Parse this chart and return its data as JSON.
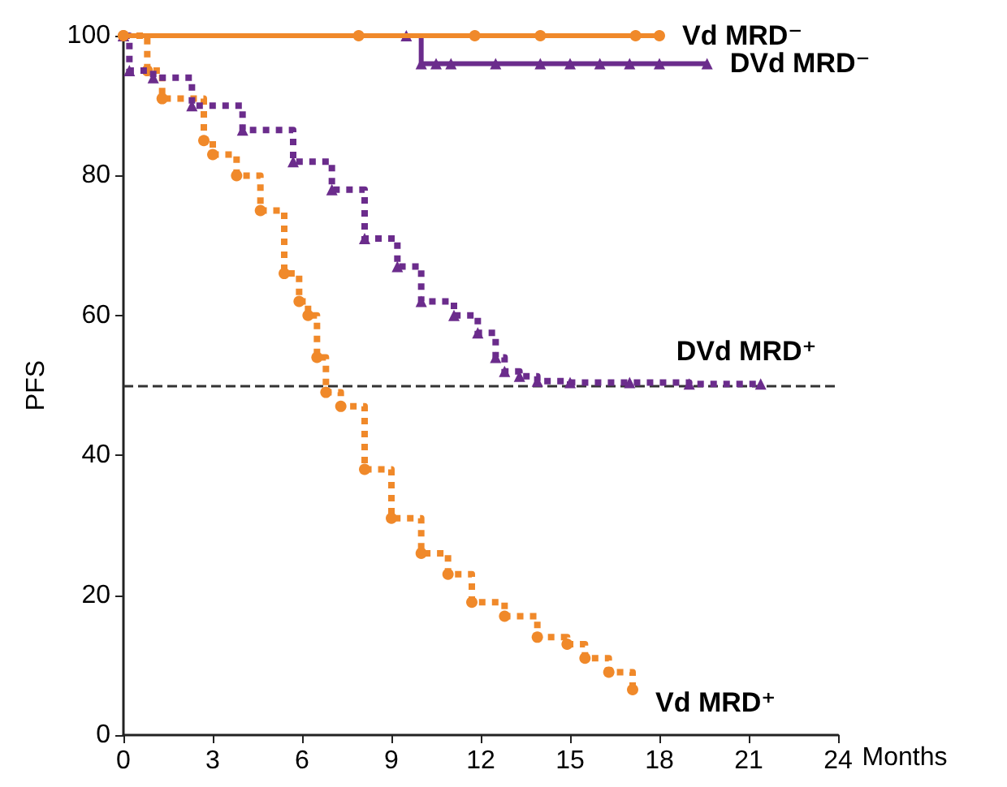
{
  "chart_data": {
    "type": "step",
    "xlabel": "Months",
    "ylabel": "PFS",
    "xlim": [
      0,
      24
    ],
    "xticks": [
      0,
      3,
      6,
      9,
      12,
      15,
      18,
      21,
      24
    ],
    "ylim": [
      0,
      100
    ],
    "yticks": [
      0,
      20,
      40,
      60,
      80,
      100
    ],
    "grid": false,
    "legend": false,
    "ref_lines": [
      {
        "axis": "y",
        "value": 50,
        "color": "#333333",
        "line_style": "dashed"
      }
    ],
    "series": [
      {
        "name": "Vd MRD⁻",
        "color": "#f0892a",
        "marker": "circle",
        "line_style": "solid",
        "x": [
          0,
          7.9,
          11.8,
          14,
          17.2,
          18
        ],
        "values": [
          100,
          100,
          100,
          100,
          100,
          100
        ]
      },
      {
        "name": "DVd MRD⁻",
        "color": "#6b2c8c",
        "marker": "triangle",
        "line_style": "solid",
        "x": [
          0,
          9.5,
          10,
          10.5,
          11,
          12.5,
          14,
          15,
          16,
          17,
          18,
          19.6
        ],
        "values": [
          100,
          100,
          96,
          96,
          96,
          96,
          96,
          96,
          96,
          96,
          96,
          96
        ]
      },
      {
        "name": "DVd MRD⁺",
        "color": "#6b2c8c",
        "marker": "triangle",
        "line_style": "dotted",
        "x": [
          0,
          0.2,
          1,
          2.3,
          4,
          5.7,
          7,
          8.1,
          9.2,
          10,
          11.1,
          11.9,
          12.5,
          12.8,
          13.3,
          13.9,
          15,
          17,
          19,
          21.4
        ],
        "values": [
          100,
          95,
          94,
          90,
          86.5,
          82,
          78,
          71,
          67,
          62,
          60,
          57.5,
          54,
          52,
          51.3,
          50.6,
          50.4,
          50.4,
          50.2,
          50.2
        ]
      },
      {
        "name": "Vd MRD⁺",
        "color": "#f0892a",
        "marker": "circle",
        "line_style": "dotted",
        "x": [
          0,
          0.8,
          1.3,
          2.7,
          3,
          3.8,
          4.6,
          5.4,
          5.9,
          6.2,
          6.5,
          6.8,
          7.3,
          8.1,
          9,
          10,
          10.9,
          11.7,
          12.8,
          13.9,
          14.9,
          15.5,
          16.3,
          17.1
        ],
        "values": [
          100,
          95,
          91,
          85,
          83,
          80,
          75,
          66,
          62,
          60,
          54,
          49,
          47,
          38,
          31,
          26,
          23,
          19,
          17,
          14,
          13,
          11,
          9,
          6.5
        ]
      }
    ]
  }
}
